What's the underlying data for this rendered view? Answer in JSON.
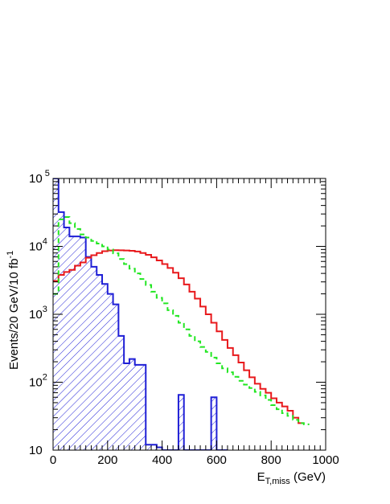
{
  "chart_data": {
    "type": "histogram",
    "xlabel": {
      "main": "E",
      "sub": "T,miss",
      "unit": " (GeV)"
    },
    "ylabel": {
      "main": "Events/20 GeV/10 fb",
      "sup": "-1"
    },
    "xlim": [
      0,
      1000
    ],
    "ylim": [
      10,
      100000
    ],
    "yscale": "log",
    "bin_width": 20,
    "grid": false,
    "x_ticks": [
      "0",
      "200",
      "400",
      "600",
      "800",
      "1000"
    ],
    "y_ticks": [
      {
        "base": "10",
        "exp": ""
      },
      {
        "base": "10",
        "exp": "2"
      },
      {
        "base": "10",
        "exp": "3"
      },
      {
        "base": "10",
        "exp": "4"
      },
      {
        "base": "10",
        "exp": " 5"
      }
    ],
    "series": [
      {
        "style": "hatched",
        "color": "#1f1fd6",
        "values": [
          100000,
          32000,
          19000,
          14000,
          14000,
          13500,
          7000,
          5000,
          3800,
          2800,
          2000,
          1400,
          480,
          190,
          220,
          180,
          180,
          12,
          12,
          11,
          8,
          8,
          8,
          65,
          9,
          8,
          8,
          8,
          8,
          60,
          8,
          8
        ]
      },
      {
        "style": "solid",
        "color": "#e8191c",
        "values": [
          3100,
          3800,
          4200,
          4500,
          5200,
          5800,
          6800,
          7400,
          8000,
          8500,
          8700,
          8800,
          8750,
          8700,
          8600,
          8400,
          8000,
          7500,
          6900,
          6200,
          5500,
          4800,
          4100,
          3400,
          2750,
          2150,
          1700,
          1300,
          1000,
          750,
          560,
          420,
          320,
          250,
          195,
          150,
          118,
          95,
          80,
          70,
          58,
          50,
          44,
          38,
          30,
          25
        ]
      },
      {
        "style": "dashed",
        "color": "#22e622",
        "values": [
          2000,
          25000,
          27000,
          22000,
          18000,
          15000,
          13500,
          12000,
          11000,
          10000,
          9000,
          7900,
          6500,
          5500,
          4700,
          4000,
          3300,
          2700,
          2150,
          1750,
          1450,
          1150,
          950,
          750,
          600,
          480,
          400,
          330,
          280,
          230,
          190,
          160,
          140,
          120,
          105,
          92,
          82,
          72,
          64,
          55,
          46,
          40,
          35,
          32,
          28,
          25,
          24
        ]
      }
    ]
  }
}
